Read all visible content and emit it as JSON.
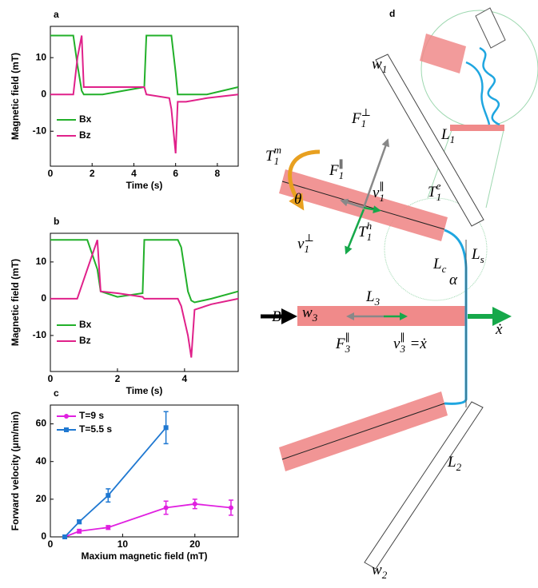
{
  "chart_data": [
    {
      "type": "line",
      "panel": "a",
      "xlabel": "Time (s)",
      "ylabel": "Magnetic field (mT)",
      "x": [
        0,
        1.1,
        1.3,
        1.5,
        1.6,
        2.5,
        3.5,
        4.5,
        4.6,
        5.7,
        5.8,
        6.0,
        6.1,
        6.5,
        7.5,
        9
      ],
      "series": [
        {
          "name": "Bx",
          "color": "#22b02a",
          "values": [
            16,
            16,
            8,
            1,
            0,
            0,
            1,
            2,
            16,
            16,
            16,
            6,
            0,
            0,
            0,
            2
          ]
        },
        {
          "name": "Bz",
          "color": "#e0218a",
          "values": [
            0,
            0,
            10,
            16,
            2,
            2,
            2,
            2,
            0,
            -1,
            -4,
            -16,
            -2,
            -2,
            -1,
            0
          ]
        }
      ],
      "xlim": [
        0,
        9
      ],
      "xticks": [
        0,
        2,
        4,
        6,
        8
      ],
      "ylim": [
        -19.5,
        18.5
      ],
      "yticks": [
        -10,
        0,
        10
      ],
      "legend": "lower left"
    },
    {
      "type": "line",
      "panel": "b",
      "xlabel": "Time (s)",
      "ylabel": "Magnetic field (mT)",
      "x": [
        0,
        0.8,
        1.1,
        1.4,
        1.5,
        2.0,
        2.75,
        2.8,
        3.8,
        3.9,
        4.1,
        4.2,
        4.3,
        4.8,
        5.6
      ],
      "series": [
        {
          "name": "Bx",
          "color": "#22b02a",
          "values": [
            16,
            16,
            16,
            8,
            2,
            0.5,
            1.5,
            16,
            16,
            14,
            2,
            -0.5,
            -1,
            0,
            2
          ]
        },
        {
          "name": "Bz",
          "color": "#e0218a",
          "values": [
            0,
            0,
            8,
            16,
            2,
            1.5,
            0.5,
            0,
            0,
            -2,
            -10,
            -16,
            -3,
            -1.5,
            0
          ]
        }
      ],
      "xlim": [
        0,
        5.6
      ],
      "xticks": [
        0,
        2,
        4
      ],
      "ylim": [
        -19.8,
        17.8
      ],
      "yticks": [
        -10,
        0,
        10
      ],
      "legend": "lower left"
    },
    {
      "type": "errorbar",
      "panel": "c",
      "xlabel": "Maxium magnetic field (mT)",
      "ylabel": "Forward velocity (μm/min)",
      "series": [
        {
          "name": "T=9 s",
          "color": "#e020e0",
          "marker": "circle",
          "x": [
            2,
            4,
            8,
            16,
            20,
            25
          ],
          "values": [
            0,
            3,
            5,
            15.5,
            17.5,
            15.5
          ],
          "errors": [
            0,
            1,
            1,
            3.5,
            2.5,
            4
          ]
        },
        {
          "name": "T=5.5 s",
          "color": "#1f78d1",
          "marker": "square",
          "x": [
            2,
            4,
            8,
            16
          ],
          "values": [
            0,
            8,
            22,
            58
          ],
          "errors": [
            0,
            1,
            3.5,
            8.5
          ]
        }
      ],
      "xlim": [
        0,
        26
      ],
      "xticks": [
        0,
        10,
        20
      ],
      "ylim": [
        0,
        70
      ],
      "yticks": [
        0,
        20,
        40,
        60
      ],
      "legend": "upper left"
    }
  ],
  "diagram": {
    "panel": "d",
    "labels": [
      {
        "text": "w",
        "sub": "1"
      },
      {
        "text": "L",
        "sub": "1"
      },
      {
        "text": "T",
        "sub": "1",
        "sup": "m"
      },
      {
        "text": "F",
        "sub": "1",
        "sup": "⊥"
      },
      {
        "text": "F",
        "sub": "1",
        "sup": "∥"
      },
      {
        "text": "θ"
      },
      {
        "text": "v",
        "sub": "1",
        "sup": "∥"
      },
      {
        "text": "T",
        "sub": "1",
        "sup": "e"
      },
      {
        "text": "T",
        "sub": "1",
        "sup": "h"
      },
      {
        "text": "v",
        "sub": "1",
        "sup": "⊥"
      },
      {
        "text": "L",
        "sub": "c"
      },
      {
        "text": "L",
        "sub": "s"
      },
      {
        "text": "α"
      },
      {
        "text": "w",
        "sub": "3"
      },
      {
        "text": "L",
        "sub": "3"
      },
      {
        "text": "B"
      },
      {
        "text": "F",
        "sub": "3",
        "sup": "∥"
      },
      {
        "text": "v",
        "sub": "3",
        "sup": "∥",
        "tail": "=ẋ"
      },
      {
        "text": "ẋ"
      },
      {
        "text": "L",
        "sub": "2"
      },
      {
        "text": "w",
        "sub": "2"
      }
    ]
  }
}
